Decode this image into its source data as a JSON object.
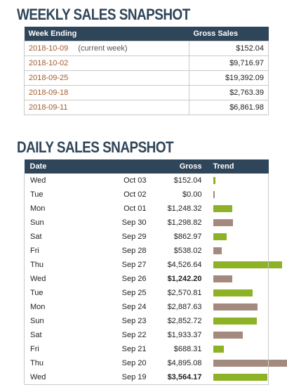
{
  "weekly": {
    "title": "WEEKLY SALES SNAPSHOT",
    "headers": {
      "week_ending": "Week Ending",
      "gross_sales": "Gross Sales"
    },
    "rows": [
      {
        "week_ending": "2018-10-09",
        "note": "(current week)",
        "gross": "$152.04"
      },
      {
        "week_ending": "2018-10-02",
        "note": "",
        "gross": "$9,716.97"
      },
      {
        "week_ending": "2018-09-25",
        "note": "",
        "gross": "$19,392.09"
      },
      {
        "week_ending": "2018-09-18",
        "note": "",
        "gross": "$2,763.39"
      },
      {
        "week_ending": "2018-09-11",
        "note": "",
        "gross": "$6,861.98"
      }
    ]
  },
  "daily": {
    "title": "DAILY SALES SNAPSHOT",
    "headers": {
      "date": "Date",
      "gross": "Gross",
      "trend": "Trend"
    },
    "colors": {
      "current_week": "#8db226",
      "previous_week": "#a48a7e"
    },
    "rows": [
      {
        "day": "Wed",
        "date": "Oct 03",
        "gross": "$152.04",
        "amount": 152.04,
        "bold": false,
        "bar": "green"
      },
      {
        "day": "Tue",
        "date": "Oct 02",
        "gross": "$0.00",
        "amount": 0.0,
        "bold": false,
        "bar": "brown"
      },
      {
        "day": "Mon",
        "date": "Oct 01",
        "gross": "$1,248.32",
        "amount": 1248.32,
        "bold": false,
        "bar": "green"
      },
      {
        "day": "Sun",
        "date": "Sep 30",
        "gross": "$1,298.82",
        "amount": 1298.82,
        "bold": false,
        "bar": "brown"
      },
      {
        "day": "Sat",
        "date": "Sep 29",
        "gross": "$862.97",
        "amount": 862.97,
        "bold": false,
        "bar": "green"
      },
      {
        "day": "Fri",
        "date": "Sep 28",
        "gross": "$538.02",
        "amount": 538.02,
        "bold": false,
        "bar": "brown"
      },
      {
        "day": "Thu",
        "date": "Sep 27",
        "gross": "$4,526.64",
        "amount": 4526.64,
        "bold": false,
        "bar": "green"
      },
      {
        "day": "Wed",
        "date": "Sep 26",
        "gross": "$1,242.20",
        "amount": 1242.2,
        "bold": true,
        "bar": "brown"
      },
      {
        "day": "Tue",
        "date": "Sep 25",
        "gross": "$2,570.81",
        "amount": 2570.81,
        "bold": false,
        "bar": "green"
      },
      {
        "day": "Mon",
        "date": "Sep 24",
        "gross": "$2,887.63",
        "amount": 2887.63,
        "bold": false,
        "bar": "brown"
      },
      {
        "day": "Sun",
        "date": "Sep 23",
        "gross": "$2,852.72",
        "amount": 2852.72,
        "bold": false,
        "bar": "green"
      },
      {
        "day": "Sat",
        "date": "Sep 22",
        "gross": "$1,933.37",
        "amount": 1933.37,
        "bold": false,
        "bar": "brown"
      },
      {
        "day": "Fri",
        "date": "Sep 21",
        "gross": "$688.31",
        "amount": 688.31,
        "bold": false,
        "bar": "green"
      },
      {
        "day": "Thu",
        "date": "Sep 20",
        "gross": "$4,895.08",
        "amount": 4895.08,
        "bold": false,
        "bar": "brown"
      },
      {
        "day": "Wed",
        "date": "Sep 19",
        "gross": "$3,564.17",
        "amount": 3564.17,
        "bold": true,
        "bar": "green"
      }
    ]
  }
}
